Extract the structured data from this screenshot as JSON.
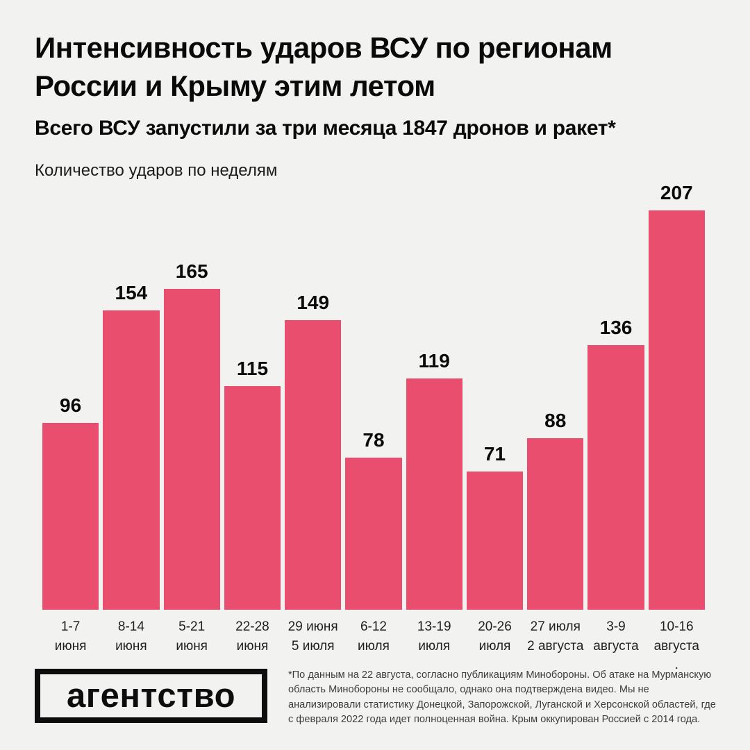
{
  "page": {
    "background_color": "#F2F2F0"
  },
  "header": {
    "title": "Интенсивность ударов ВСУ по регионам\nРоссии и Крыму этим летом",
    "subtitle": "Всего ВСУ запустили за три месяца 1847 дронов и ракет*",
    "caption": "Количество ударов по неделям"
  },
  "chart_data": {
    "type": "bar",
    "title": "Количество ударов по неделям",
    "categories": [
      "1-7\nиюня",
      "8-14\nиюня",
      "5-21\nиюня",
      "22-28\nиюня",
      "29 июня\n5 июля",
      "6-12\nиюля",
      "13-19\nиюля",
      "20-26\nиюля",
      "27 июля\n2 августа",
      "3-9\nавгуста",
      "10-16\nавгуста\n."
    ],
    "values": [
      96,
      154,
      165,
      115,
      149,
      78,
      119,
      71,
      88,
      136,
      207
    ],
    "value_labels_shown": true,
    "bar_color": "#EA4E6F",
    "ylim": [
      0,
      207
    ],
    "grid": false,
    "legend": "none",
    "axes_shown": false
  },
  "footer": {
    "logo_text": "агентство",
    "footnote": "*По данным на 22 августа, согласно публикациям Минобороны. Об атаке на Мурманскую область Минобороны не сообщало, однако она подтверждена видео. Мы не анализировали статистику Донецкой, Запорожской, Луганской и Херсонской областей, где с февраля 2022 года идет полноценная война. Крым оккупирован Россией с 2014 года."
  }
}
